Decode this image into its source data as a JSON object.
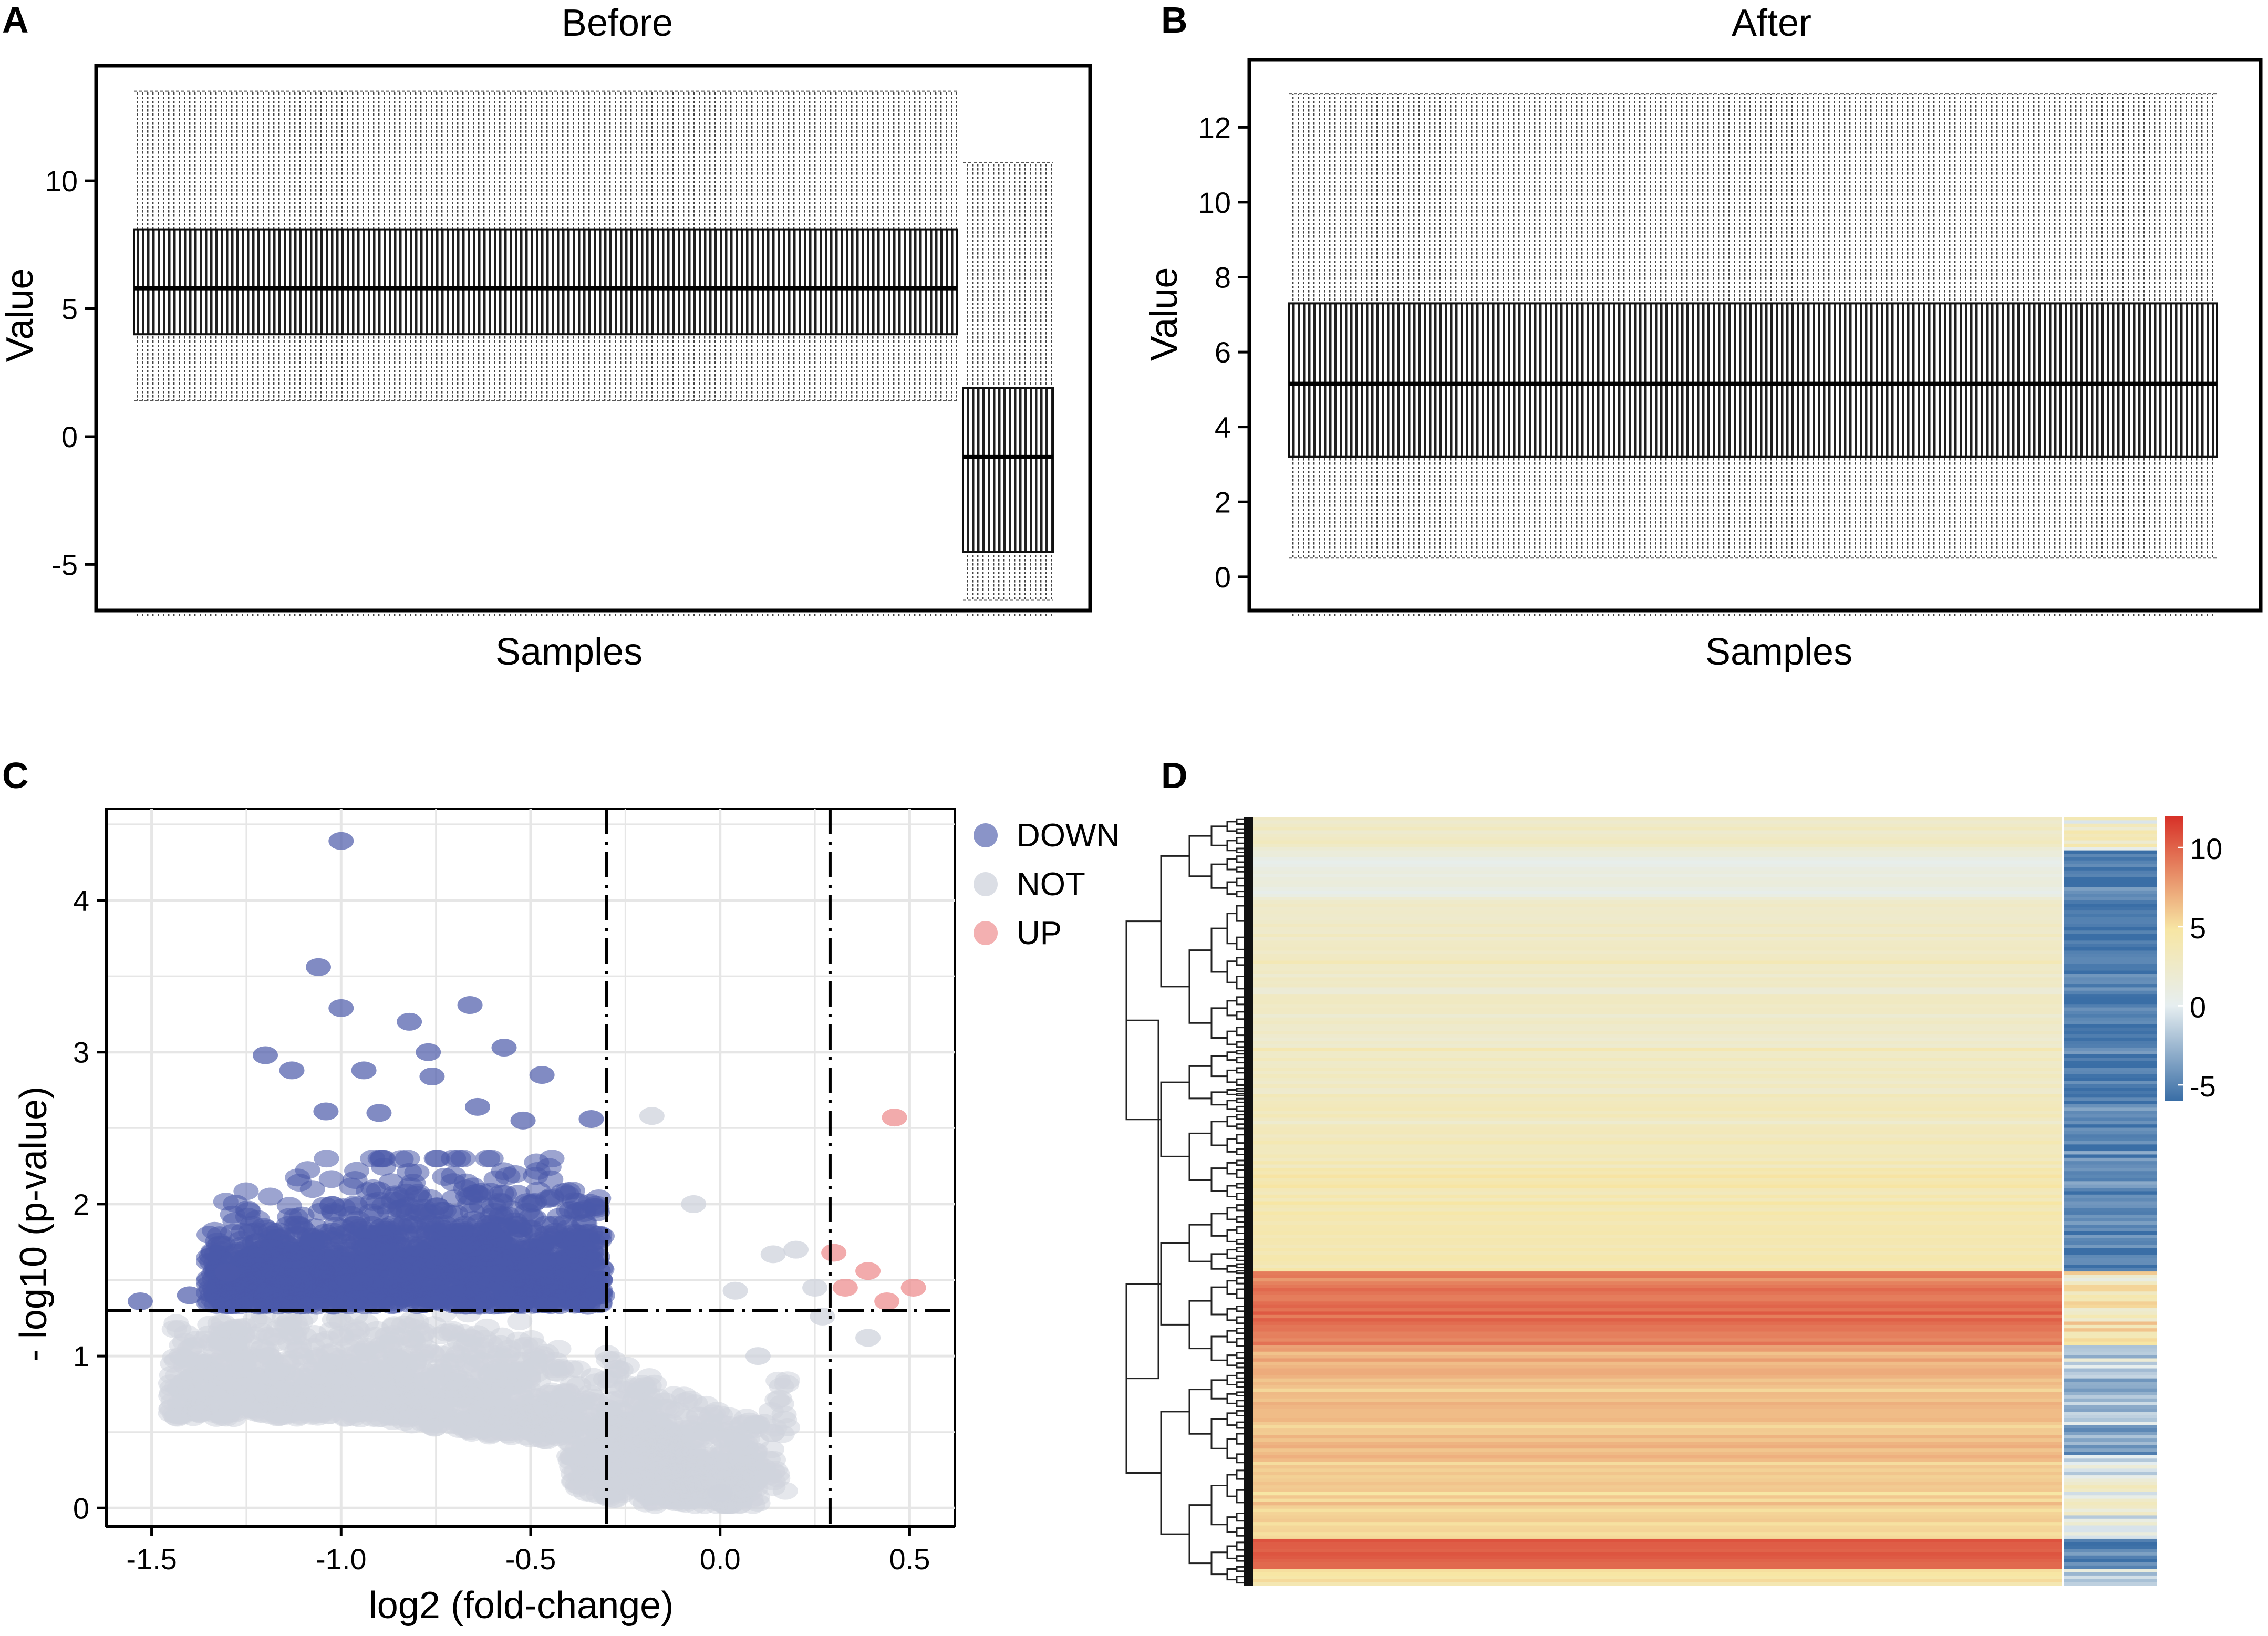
{
  "chart_data": [
    {
      "panel": "A",
      "type": "boxplot",
      "title": "Before",
      "xlabel": "Samples",
      "ylabel": "Value",
      "ylim": [
        -6.8,
        14.5
      ],
      "yticks": [
        -5,
        0,
        5,
        10
      ],
      "groups": [
        {
          "samples": 133,
          "whisker_low": 1.4,
          "q1": 4.0,
          "median": 5.8,
          "q3": 8.1,
          "whisker_high": 13.5
        },
        {
          "samples": 15,
          "whisker_low": -6.4,
          "q1": -4.5,
          "median": -0.8,
          "q3": 1.9,
          "whisker_high": 10.7
        }
      ]
    },
    {
      "panel": "B",
      "type": "boxplot",
      "title": "After",
      "xlabel": "Samples",
      "ylabel": "Value",
      "ylim": [
        -0.9,
        13.8
      ],
      "yticks": [
        0,
        2,
        4,
        6,
        8,
        10,
        12
      ],
      "groups": [
        {
          "samples": 148,
          "whisker_low": 0.5,
          "q1": 3.2,
          "median": 5.15,
          "q3": 7.3,
          "whisker_high": 12.9
        }
      ]
    },
    {
      "panel": "C",
      "type": "scatter",
      "xlabel": "log2 (fold-change)",
      "ylabel": "- log10 (p-value)",
      "xlim": [
        -1.62,
        0.62
      ],
      "ylim": [
        -0.12,
        4.6
      ],
      "xticks": [
        -1.5,
        -1.0,
        -0.5,
        0.0,
        0.5
      ],
      "xtick_labels": [
        "-1.5",
        "-1.0",
        "-0.5",
        "0.0",
        "0.5"
      ],
      "yticks": [
        0,
        1,
        2,
        3,
        4
      ],
      "thresholds": {
        "x": [
          -0.3,
          0.29
        ],
        "y": 1.3
      },
      "legend": [
        {
          "name": "DOWN",
          "color": "#4b5aaa"
        },
        {
          "name": "NOT",
          "color": "#cfd3dc"
        },
        {
          "name": "UP",
          "color": "#ee8f90"
        }
      ],
      "highlight_points": {
        "DOWN": [
          [
            -1.0,
            4.39
          ],
          [
            -1.06,
            3.56
          ],
          [
            -1.0,
            3.29
          ],
          [
            -0.82,
            3.2
          ],
          [
            -0.66,
            3.31
          ],
          [
            -1.2,
            2.98
          ],
          [
            -1.13,
            2.88
          ],
          [
            -0.94,
            2.88
          ],
          [
            -0.77,
            3.0
          ],
          [
            -0.76,
            2.84
          ],
          [
            -0.57,
            3.03
          ],
          [
            -0.47,
            2.85
          ],
          [
            -1.04,
            2.61
          ],
          [
            -0.9,
            2.6
          ],
          [
            -0.64,
            2.64
          ],
          [
            -0.52,
            2.55
          ],
          [
            -0.34,
            2.56
          ],
          [
            -1.53,
            1.36
          ],
          [
            -1.4,
            1.4
          ],
          [
            -1.3,
            1.55
          ]
        ],
        "UP": [
          [
            0.46,
            2.57
          ],
          [
            0.3,
            1.68
          ],
          [
            0.33,
            1.45
          ],
          [
            0.39,
            1.56
          ],
          [
            0.44,
            1.36
          ],
          [
            0.51,
            1.45
          ]
        ],
        "NOT": [
          [
            -0.18,
            2.58
          ],
          [
            -0.07,
            2.0
          ],
          [
            0.04,
            1.43
          ],
          [
            0.14,
            1.67
          ],
          [
            0.2,
            1.7
          ],
          [
            0.25,
            1.45
          ],
          [
            0.27,
            1.26
          ],
          [
            0.39,
            1.12
          ],
          [
            0.1,
            1.0
          ],
          [
            0.0,
            0.1
          ]
        ]
      }
    },
    {
      "panel": "D",
      "type": "heatmap",
      "colorbar": {
        "ticks": [
          10,
          5,
          0,
          -5
        ],
        "range": [
          -6,
          12
        ],
        "colors": [
          "#3a6ea6",
          "#e6eef0",
          "#f7e6a4",
          "#d73027"
        ]
      },
      "row_blocks": [
        {
          "main": 2.4,
          "side": 1.5
        },
        {
          "main": 0.9,
          "side": -5.4
        },
        {
          "main": 2.6,
          "side": -5.4
        },
        {
          "main": 3.2,
          "side": -4.8
        },
        {
          "main": 4.0,
          "side": -5.2
        },
        {
          "main": 9.2,
          "side": 4.0
        },
        {
          "main": 7.0,
          "side": -1.0
        },
        {
          "main": 6.2,
          "side": -2.5
        },
        {
          "main": 5.4,
          "side": 1.0
        },
        {
          "main": 10.2,
          "side": -5.0
        },
        {
          "main": 4.6,
          "side": -1.0
        }
      ]
    }
  ],
  "labels": {
    "a": "A",
    "b": "B",
    "c": "C",
    "d": "D"
  }
}
